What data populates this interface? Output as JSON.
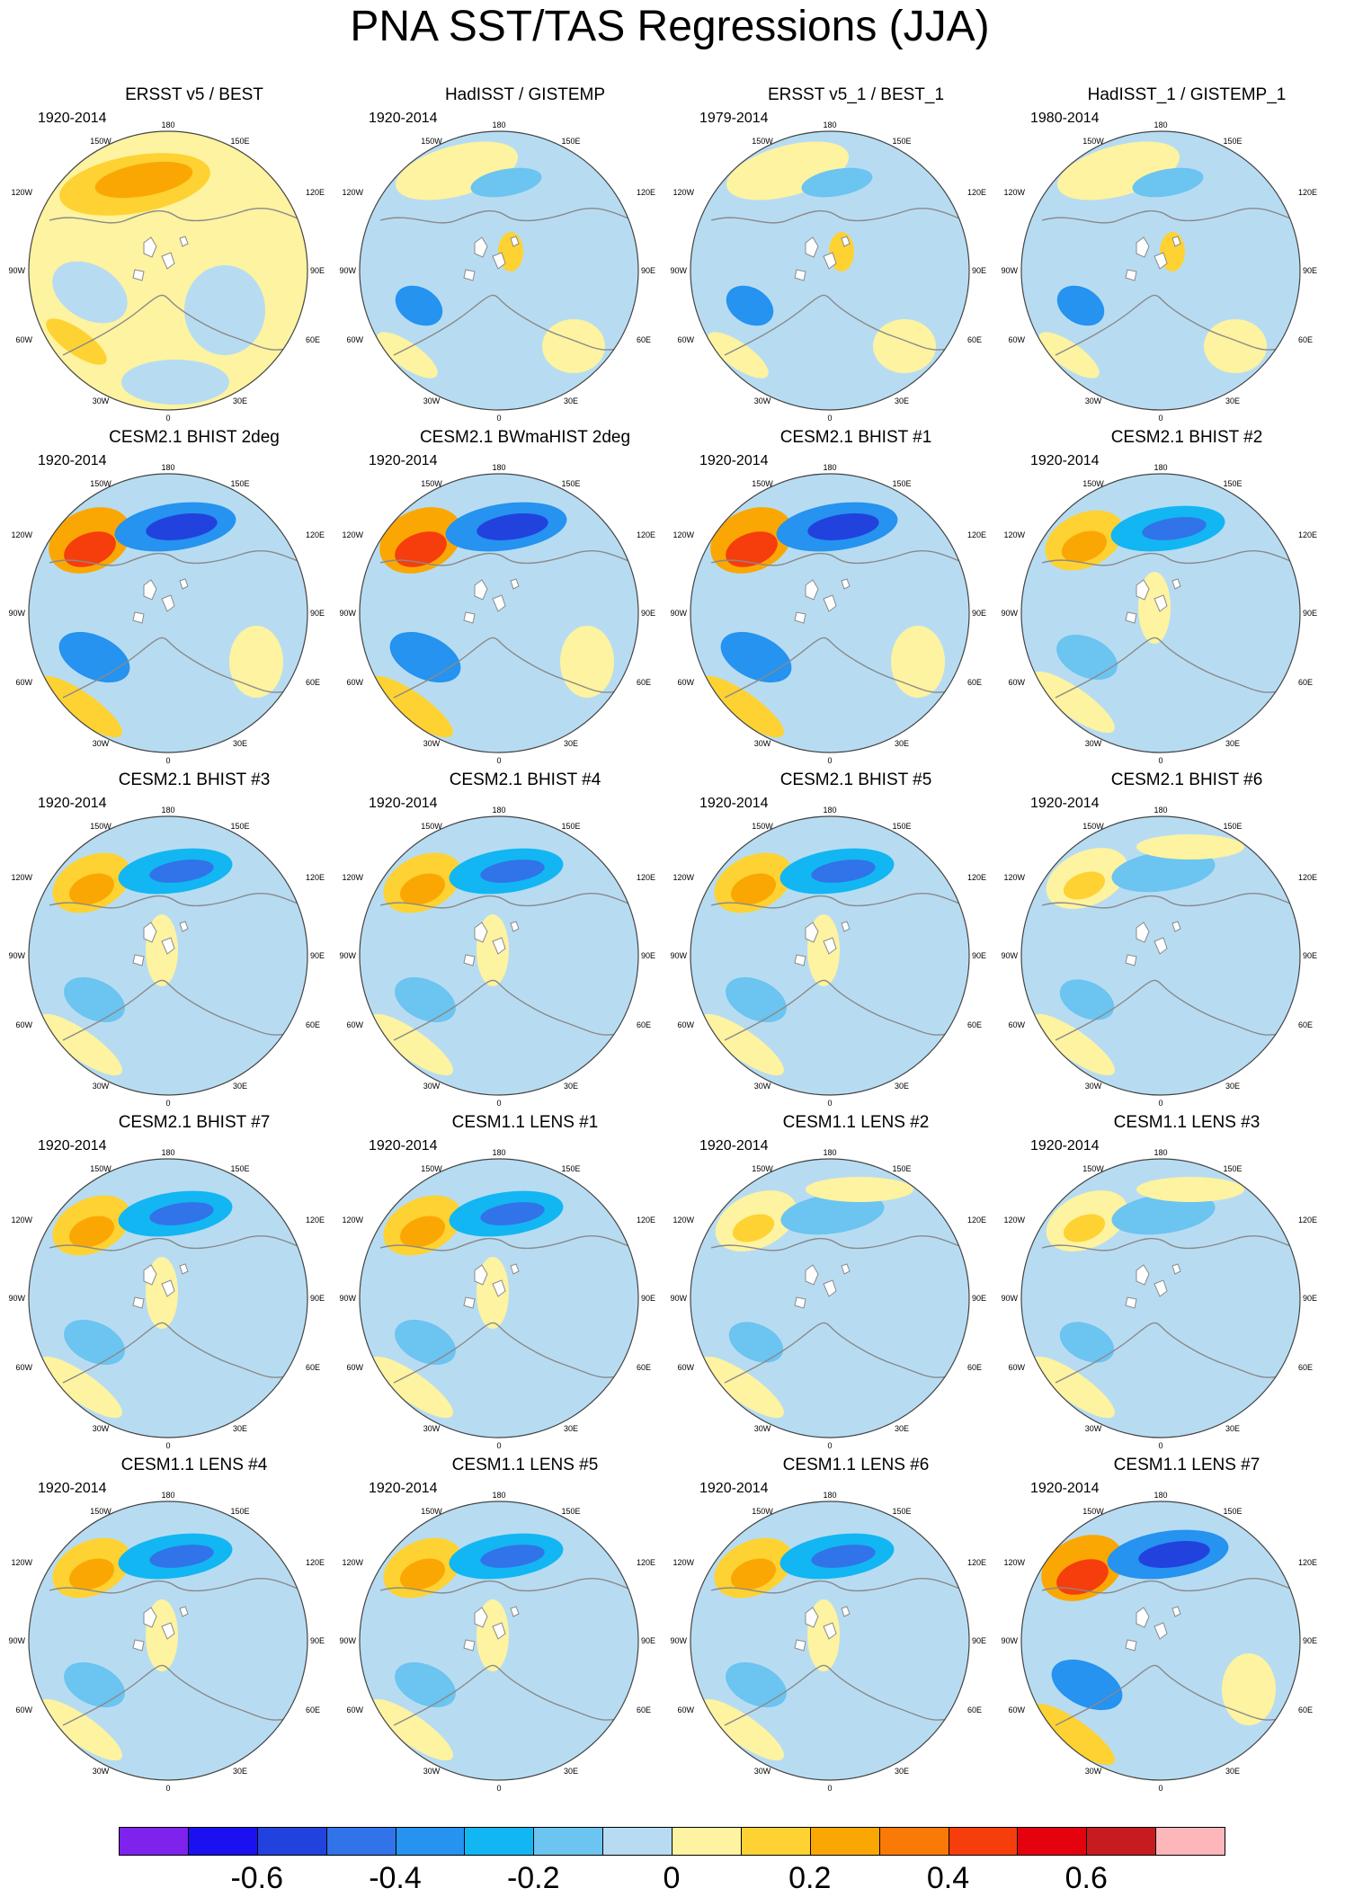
{
  "title": "PNA SST/TAS Regressions (JJA)",
  "palette": {
    "n6": "#b7dcf2",
    "n5": "#6cc4f0",
    "n4": "#12b6f2",
    "n3": "#2593ef",
    "n2": "#3173e8",
    "n1": "#2242de",
    "n0": "#1a10f0",
    "nd": "#7e22ee",
    "p1": "#fdf3a0",
    "p2": "#fdd232",
    "p3": "#fba703",
    "p4": "#f97a06",
    "p5": "#f63d0c",
    "p6": "#e5020f",
    "p7": "#c71b1f",
    "pp": "#fdb6ba",
    "land": "#ffffff",
    "coast": "#8a8a8a",
    "frame": "#444444"
  },
  "longitude_labels": [
    "180",
    "150W",
    "150E",
    "120W",
    "120E",
    "90W",
    "90E",
    "60W",
    "60E",
    "30W",
    "30E",
    "0"
  ],
  "panels": [
    {
      "title": "ERSST v5 / BEST",
      "period": "1920-2014",
      "style": "obs"
    },
    {
      "title": "HadISST / GISTEMP",
      "period": "1920-2014",
      "style": "obsneg"
    },
    {
      "title": "ERSST v5_1 / BEST_1",
      "period": "1979-2014",
      "style": "obsneg"
    },
    {
      "title": "HadISST_1 / GISTEMP_1",
      "period": "1980-2014",
      "style": "obsneg"
    },
    {
      "title": "CESM2.1 BHIST 2deg",
      "period": "1920-2014",
      "style": "strong"
    },
    {
      "title": "CESM2.1 BWmaHIST 2deg",
      "period": "1920-2014",
      "style": "strong"
    },
    {
      "title": "CESM2.1 BHIST #1",
      "period": "1920-2014",
      "style": "strong"
    },
    {
      "title": "CESM2.1 BHIST #2",
      "period": "1920-2014",
      "style": "model"
    },
    {
      "title": "CESM2.1 BHIST #3",
      "period": "1920-2014",
      "style": "model"
    },
    {
      "title": "CESM2.1 BHIST #4",
      "period": "1920-2014",
      "style": "model"
    },
    {
      "title": "CESM2.1 BHIST #5",
      "period": "1920-2014",
      "style": "model"
    },
    {
      "title": "CESM2.1 BHIST #6",
      "period": "1920-2014",
      "style": "weak"
    },
    {
      "title": "CESM2.1 BHIST #7",
      "period": "1920-2014",
      "style": "model"
    },
    {
      "title": "CESM1.1 LENS #1",
      "period": "1920-2014",
      "style": "model"
    },
    {
      "title": "CESM1.1 LENS #2",
      "period": "1920-2014",
      "style": "weak"
    },
    {
      "title": "CESM1.1 LENS #3",
      "period": "1920-2014",
      "style": "weak"
    },
    {
      "title": "CESM1.1 LENS #4",
      "period": "1920-2014",
      "style": "model"
    },
    {
      "title": "CESM1.1 LENS #5",
      "period": "1920-2014",
      "style": "model"
    },
    {
      "title": "CESM1.1 LENS #6",
      "period": "1920-2014",
      "style": "model"
    },
    {
      "title": "CESM1.1 LENS #7",
      "period": "1920-2014",
      "style": "strong"
    }
  ],
  "colorbar": {
    "colors": [
      "#7e22ee",
      "#1a10f0",
      "#2242de",
      "#3173e8",
      "#2593ef",
      "#12b6f2",
      "#6cc4f0",
      "#b7dcf2",
      "#fdf3a0",
      "#fdd232",
      "#fba703",
      "#f97a06",
      "#f63d0c",
      "#e5020f",
      "#c71b1f",
      "#fdb6ba"
    ],
    "labels": [
      "-0.6",
      "-0.4",
      "-0.2",
      "0",
      "0.2",
      "0.4",
      "0.6"
    ],
    "label_positions": [
      2,
      4,
      6,
      8,
      10,
      12,
      14
    ]
  }
}
